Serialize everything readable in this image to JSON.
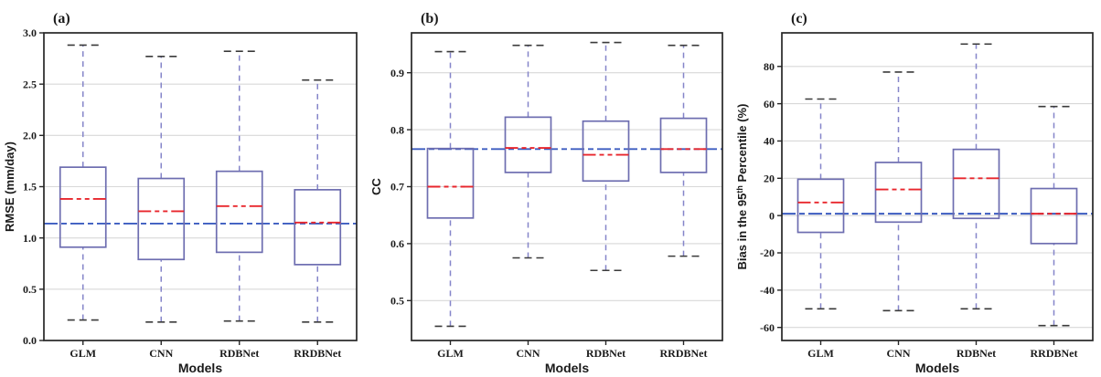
{
  "figure": {
    "description": "Three-panel box-and-whisker comparison of downscaling models",
    "categories": [
      "GLM",
      "CNN",
      "RDBNet",
      "RRDBNet"
    ],
    "xlabel": "Models"
  },
  "colors": {
    "box_edge": "#6d6db0",
    "whisker": "#8585c9",
    "cap": "#3a3a3a",
    "median": "#e8262c",
    "reference_line": "#3c5cc0",
    "gridline": "#d8d8d8",
    "spine": "#262626",
    "text": "#1a1a1a",
    "panel_label": "#1b2a4a",
    "background": "#ffffff"
  },
  "chart_data": [
    {
      "type": "box",
      "panel_label": "(a)",
      "ylabel_parts": [
        {
          "text": "RMSE (mm/day)",
          "sup": false
        }
      ],
      "xlabel": "Models",
      "categories": [
        "GLM",
        "CNN",
        "RDBNet",
        "RRDBNet"
      ],
      "ylim": [
        0.0,
        3.0
      ],
      "yticks": [
        {
          "v": 0.0,
          "label": "0.0"
        },
        {
          "v": 0.5,
          "label": "0.5"
        },
        {
          "v": 1.0,
          "label": "1.0"
        },
        {
          "v": 1.5,
          "label": "1.5"
        },
        {
          "v": 2.0,
          "label": "2.0"
        },
        {
          "v": 2.5,
          "label": "2.5"
        },
        {
          "v": 3.0,
          "label": "3.0"
        }
      ],
      "boxes": [
        {
          "model": "GLM",
          "whisker_low": 0.2,
          "q1": 0.91,
          "median": 1.38,
          "q3": 1.69,
          "whisker_high": 2.88
        },
        {
          "model": "CNN",
          "whisker_low": 0.18,
          "q1": 0.79,
          "median": 1.26,
          "q3": 1.58,
          "whisker_high": 2.77
        },
        {
          "model": "RDBNet",
          "whisker_low": 0.19,
          "q1": 0.86,
          "median": 1.31,
          "q3": 1.65,
          "whisker_high": 2.82
        },
        {
          "model": "RRDBNet",
          "whisker_low": 0.18,
          "q1": 0.74,
          "median": 1.15,
          "q3": 1.47,
          "whisker_high": 2.54
        }
      ],
      "reference_line": 1.14,
      "grid": true,
      "legend": "none"
    },
    {
      "type": "box",
      "panel_label": "(b)",
      "ylabel_parts": [
        {
          "text": "CC",
          "sup": false
        }
      ],
      "xlabel": "Models",
      "categories": [
        "GLM",
        "CNN",
        "RDBNet",
        "RRDBNet"
      ],
      "ylim": [
        0.43,
        0.97
      ],
      "yticks": [
        {
          "v": 0.5,
          "label": "0.5"
        },
        {
          "v": 0.6,
          "label": "0.6"
        },
        {
          "v": 0.7,
          "label": "0.7"
        },
        {
          "v": 0.8,
          "label": "0.8"
        },
        {
          "v": 0.9,
          "label": "0.9"
        }
      ],
      "boxes": [
        {
          "model": "GLM",
          "whisker_low": 0.455,
          "q1": 0.645,
          "median": 0.7,
          "q3": 0.767,
          "whisker_high": 0.937
        },
        {
          "model": "CNN",
          "whisker_low": 0.575,
          "q1": 0.725,
          "median": 0.768,
          "q3": 0.822,
          "whisker_high": 0.948
        },
        {
          "model": "RDBNet",
          "whisker_low": 0.553,
          "q1": 0.71,
          "median": 0.756,
          "q3": 0.815,
          "whisker_high": 0.953
        },
        {
          "model": "RRDBNet",
          "whisker_low": 0.578,
          "q1": 0.725,
          "median": 0.766,
          "q3": 0.82,
          "whisker_high": 0.948
        }
      ],
      "reference_line": 0.766,
      "grid": true,
      "legend": "none"
    },
    {
      "type": "box",
      "panel_label": "(c)",
      "ylabel_parts": [
        {
          "text": "Bias in the 95",
          "sup": false
        },
        {
          "text": "th",
          "sup": true
        },
        {
          "text": " Percentile (%)",
          "sup": false
        }
      ],
      "xlabel": "Models",
      "categories": [
        "GLM",
        "CNN",
        "RDBNet",
        "RRDBNet"
      ],
      "ylim": [
        -67,
        98
      ],
      "yticks": [
        {
          "v": -60,
          "label": "-60"
        },
        {
          "v": -40,
          "label": "-40"
        },
        {
          "v": -20,
          "label": "-20"
        },
        {
          "v": 0,
          "label": "0"
        },
        {
          "v": 20,
          "label": "20"
        },
        {
          "v": 40,
          "label": "40"
        },
        {
          "v": 60,
          "label": "60"
        },
        {
          "v": 80,
          "label": "80"
        }
      ],
      "boxes": [
        {
          "model": "GLM",
          "whisker_low": -50,
          "q1": -9.0,
          "median": 7.0,
          "q3": 19.5,
          "whisker_high": 62.5
        },
        {
          "model": "CNN",
          "whisker_low": -51,
          "q1": -3.5,
          "median": 14.0,
          "q3": 28.5,
          "whisker_high": 77.0
        },
        {
          "model": "RDBNet",
          "whisker_low": -50,
          "q1": -1.5,
          "median": 20.0,
          "q3": 35.5,
          "whisker_high": 92.0
        },
        {
          "model": "RRDBNet",
          "whisker_low": -59,
          "q1": -15.0,
          "median": 1.0,
          "q3": 14.5,
          "whisker_high": 58.5
        }
      ],
      "reference_line": 1.0,
      "grid": true,
      "legend": "none"
    }
  ]
}
